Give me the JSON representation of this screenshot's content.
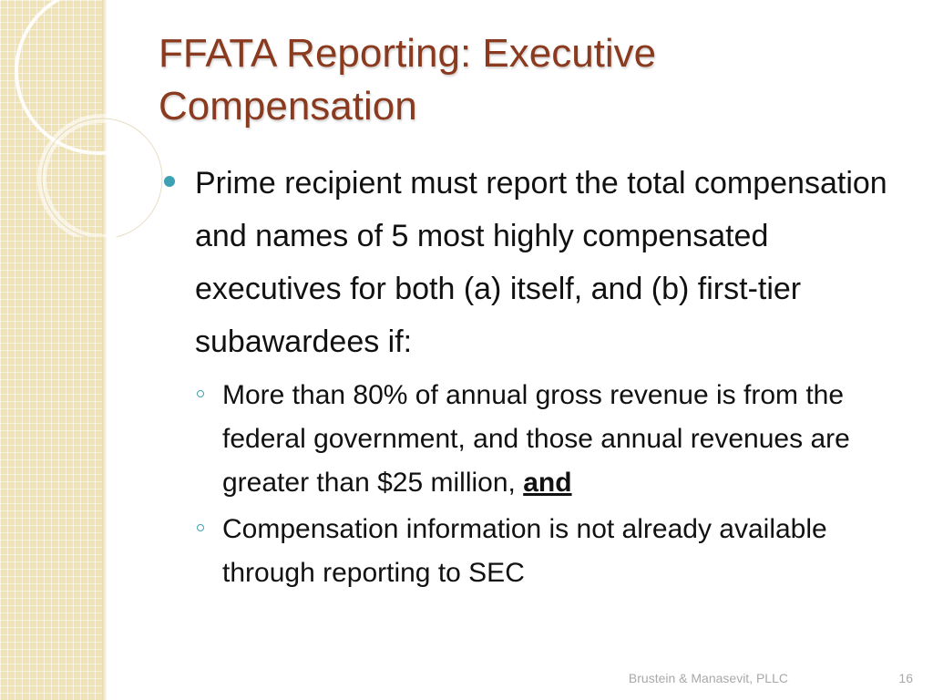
{
  "slide": {
    "title": "FFATA Reporting: Executive Compensation",
    "bullets": [
      {
        "text": "Prime recipient must report the total compensation and names of 5 most highly compensated executives for both (a) itself, and (b) first-tier subawardees if:",
        "sub_bullets": [
          {
            "text": "More than 80% of annual gross revenue is from the federal government, and those annual revenues are greater than $25 million, ",
            "emphasis": "and"
          },
          {
            "text": "Compensation information is not already available through reporting to SEC"
          }
        ]
      }
    ],
    "footer": "Brustein & Manasevit, PLLC",
    "page_number": "16"
  },
  "colors": {
    "title": "#8a3a1e",
    "bullet_accent": "#3ea0b3",
    "strip": "#efe2b7",
    "footer_text": "#a9a9a9"
  }
}
